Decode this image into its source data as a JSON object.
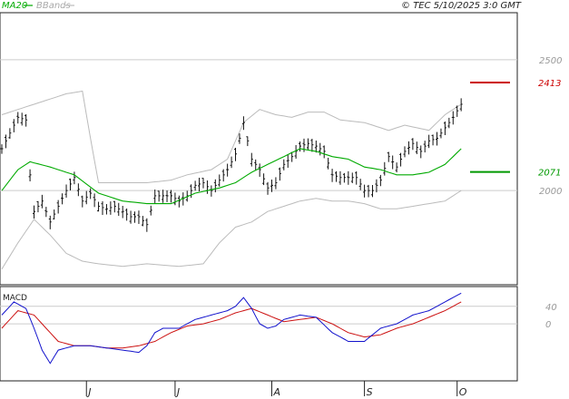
{
  "legend": {
    "ma_label": "MA20",
    "bb_label": "BBands"
  },
  "copyright": "© TEC 5/10/2025 3:0 GMT",
  "macd_label": "MACD",
  "colors": {
    "price": "#111111",
    "ma": "#00aa00",
    "bands": "#bbbbbb",
    "macd": "#1111cc",
    "signal": "#cc1111",
    "resistance": "#cc0000",
    "support": "#009900"
  },
  "chart_data": [
    {
      "type": "line",
      "title": "",
      "ylim": [
        1640,
        2680
      ],
      "y_ticks": [
        {
          "value": 2500,
          "label": "2500"
        },
        {
          "value": 2000,
          "label": "2000"
        }
      ],
      "months": [
        {
          "index": 21,
          "label": "J"
        },
        {
          "index": 43,
          "label": "J"
        },
        {
          "index": 67,
          "label": "A"
        },
        {
          "index": 90,
          "label": "S"
        },
        {
          "index": 113,
          "label": "O"
        }
      ],
      "levels": [
        {
          "name": "resistance",
          "value": 2413,
          "label": "2413"
        },
        {
          "name": "support",
          "value": 2071,
          "label": "2071"
        }
      ],
      "series": [
        {
          "name": "price",
          "anchors": [
            [
              0,
              2160
            ],
            [
              4,
              2280
            ],
            [
              6,
              2270
            ],
            [
              7,
              2060
            ],
            [
              8,
              1920
            ],
            [
              10,
              1960
            ],
            [
              12,
              1880
            ],
            [
              14,
              1940
            ],
            [
              16,
              2000
            ],
            [
              18,
              2050
            ],
            [
              20,
              1960
            ],
            [
              22,
              1990
            ],
            [
              24,
              1940
            ],
            [
              26,
              1930
            ],
            [
              28,
              1940
            ],
            [
              30,
              1920
            ],
            [
              32,
              1900
            ],
            [
              34,
              1900
            ],
            [
              36,
              1870
            ],
            [
              38,
              1980
            ],
            [
              40,
              1980
            ],
            [
              42,
              1980
            ],
            [
              44,
              1960
            ],
            [
              46,
              1980
            ],
            [
              48,
              2020
            ],
            [
              50,
              2030
            ],
            [
              52,
              2000
            ],
            [
              54,
              2040
            ],
            [
              56,
              2080
            ],
            [
              58,
              2140
            ],
            [
              60,
              2260
            ],
            [
              62,
              2120
            ],
            [
              64,
              2080
            ],
            [
              66,
              2010
            ],
            [
              68,
              2030
            ],
            [
              70,
              2100
            ],
            [
              72,
              2130
            ],
            [
              74,
              2170
            ],
            [
              76,
              2180
            ],
            [
              78,
              2170
            ],
            [
              80,
              2150
            ],
            [
              82,
              2060
            ],
            [
              84,
              2050
            ],
            [
              86,
              2050
            ],
            [
              88,
              2050
            ],
            [
              90,
              2000
            ],
            [
              92,
              2000
            ],
            [
              94,
              2040
            ],
            [
              96,
              2130
            ],
            [
              98,
              2090
            ],
            [
              100,
              2150
            ],
            [
              102,
              2180
            ],
            [
              104,
              2150
            ],
            [
              106,
              2190
            ],
            [
              108,
              2200
            ],
            [
              110,
              2240
            ],
            [
              112,
              2280
            ],
            [
              114,
              2330
            ]
          ]
        },
        {
          "name": "MA20",
          "anchors": [
            [
              0,
              2000
            ],
            [
              4,
              2080
            ],
            [
              7,
              2110
            ],
            [
              12,
              2090
            ],
            [
              18,
              2060
            ],
            [
              24,
              1990
            ],
            [
              30,
              1960
            ],
            [
              36,
              1950
            ],
            [
              42,
              1950
            ],
            [
              48,
              1990
            ],
            [
              54,
              2010
            ],
            [
              58,
              2030
            ],
            [
              62,
              2070
            ],
            [
              66,
              2100
            ],
            [
              70,
              2130
            ],
            [
              74,
              2160
            ],
            [
              78,
              2150
            ],
            [
              82,
              2130
            ],
            [
              86,
              2120
            ],
            [
              90,
              2090
            ],
            [
              94,
              2080
            ],
            [
              98,
              2060
            ],
            [
              102,
              2060
            ],
            [
              106,
              2070
            ],
            [
              110,
              2100
            ],
            [
              114,
              2160
            ]
          ]
        },
        {
          "name": "upper_band",
          "anchors": [
            [
              0,
              2290
            ],
            [
              4,
              2310
            ],
            [
              10,
              2340
            ],
            [
              16,
              2370
            ],
            [
              20,
              2380
            ],
            [
              22,
              2200
            ],
            [
              24,
              2030
            ],
            [
              30,
              2030
            ],
            [
              36,
              2030
            ],
            [
              42,
              2040
            ],
            [
              46,
              2060
            ],
            [
              52,
              2080
            ],
            [
              56,
              2120
            ],
            [
              60,
              2260
            ],
            [
              64,
              2310
            ],
            [
              68,
              2290
            ],
            [
              72,
              2280
            ],
            [
              76,
              2300
            ],
            [
              80,
              2300
            ],
            [
              84,
              2270
            ],
            [
              90,
              2260
            ],
            [
              96,
              2230
            ],
            [
              100,
              2250
            ],
            [
              106,
              2230
            ],
            [
              110,
              2290
            ],
            [
              114,
              2330
            ]
          ]
        },
        {
          "name": "lower_band",
          "anchors": [
            [
              0,
              1700
            ],
            [
              4,
              1800
            ],
            [
              8,
              1890
            ],
            [
              12,
              1830
            ],
            [
              16,
              1760
            ],
            [
              20,
              1730
            ],
            [
              24,
              1720
            ],
            [
              30,
              1710
            ],
            [
              36,
              1720
            ],
            [
              44,
              1710
            ],
            [
              50,
              1720
            ],
            [
              54,
              1800
            ],
            [
              58,
              1860
            ],
            [
              62,
              1880
            ],
            [
              66,
              1920
            ],
            [
              70,
              1940
            ],
            [
              74,
              1960
            ],
            [
              78,
              1970
            ],
            [
              82,
              1960
            ],
            [
              86,
              1960
            ],
            [
              90,
              1950
            ],
            [
              94,
              1930
            ],
            [
              98,
              1930
            ],
            [
              102,
              1940
            ],
            [
              106,
              1950
            ],
            [
              110,
              1960
            ],
            [
              114,
              2000
            ]
          ]
        }
      ]
    },
    {
      "type": "line",
      "title": "MACD",
      "ylim": [
        -130,
        85
      ],
      "y_ticks": [
        {
          "value": 40,
          "label": "40"
        },
        {
          "value": 0,
          "label": "0"
        }
      ],
      "series": [
        {
          "name": "macd",
          "anchors": [
            [
              0,
              20
            ],
            [
              3,
              50
            ],
            [
              6,
              35
            ],
            [
              8,
              -10
            ],
            [
              10,
              -60
            ],
            [
              12,
              -90
            ],
            [
              14,
              -60
            ],
            [
              18,
              -50
            ],
            [
              22,
              -50
            ],
            [
              26,
              -55
            ],
            [
              30,
              -60
            ],
            [
              34,
              -65
            ],
            [
              36,
              -50
            ],
            [
              38,
              -20
            ],
            [
              40,
              -10
            ],
            [
              44,
              -10
            ],
            [
              48,
              10
            ],
            [
              52,
              20
            ],
            [
              56,
              30
            ],
            [
              58,
              40
            ],
            [
              60,
              60
            ],
            [
              62,
              35
            ],
            [
              64,
              0
            ],
            [
              66,
              -10
            ],
            [
              68,
              -5
            ],
            [
              70,
              10
            ],
            [
              72,
              15
            ],
            [
              74,
              20
            ],
            [
              78,
              15
            ],
            [
              82,
              -20
            ],
            [
              86,
              -40
            ],
            [
              88,
              -40
            ],
            [
              90,
              -40
            ],
            [
              94,
              -10
            ],
            [
              98,
              0
            ],
            [
              102,
              20
            ],
            [
              106,
              30
            ],
            [
              110,
              50
            ],
            [
              114,
              70
            ]
          ]
        },
        {
          "name": "signal",
          "anchors": [
            [
              0,
              -10
            ],
            [
              4,
              30
            ],
            [
              8,
              20
            ],
            [
              12,
              -20
            ],
            [
              14,
              -40
            ],
            [
              18,
              -50
            ],
            [
              22,
              -50
            ],
            [
              26,
              -55
            ],
            [
              30,
              -55
            ],
            [
              34,
              -50
            ],
            [
              38,
              -40
            ],
            [
              42,
              -20
            ],
            [
              46,
              -5
            ],
            [
              50,
              0
            ],
            [
              54,
              10
            ],
            [
              58,
              25
            ],
            [
              62,
              35
            ],
            [
              66,
              20
            ],
            [
              70,
              5
            ],
            [
              74,
              10
            ],
            [
              78,
              15
            ],
            [
              82,
              0
            ],
            [
              86,
              -20
            ],
            [
              90,
              -30
            ],
            [
              94,
              -25
            ],
            [
              98,
              -10
            ],
            [
              102,
              0
            ],
            [
              106,
              15
            ],
            [
              110,
              30
            ],
            [
              114,
              50
            ]
          ]
        }
      ]
    }
  ]
}
